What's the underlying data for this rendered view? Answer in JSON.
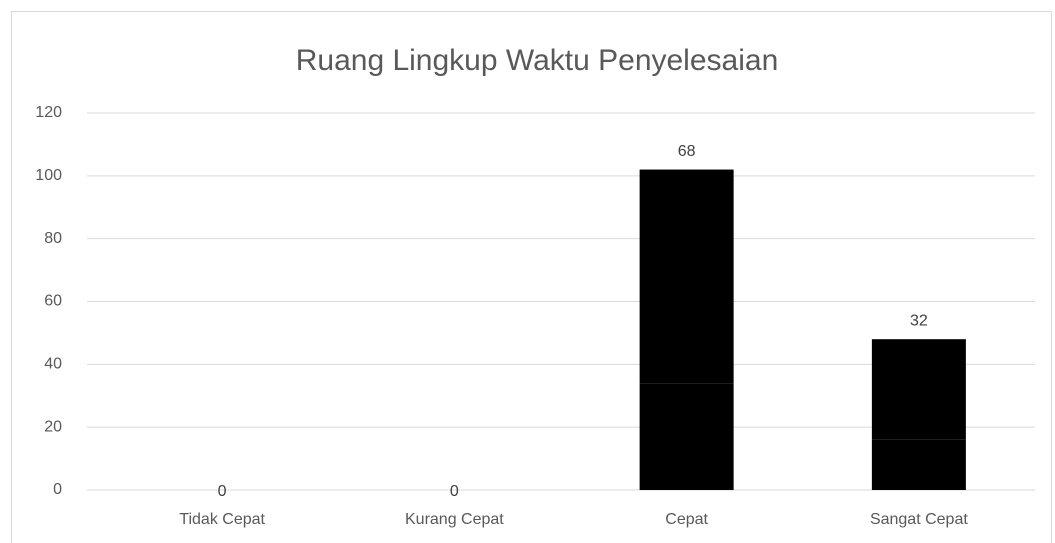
{
  "chart_data": {
    "type": "stacked_bar",
    "title": "Ruang Lingkup Waktu Penyelesaian",
    "categories": [
      "Tidak Cepat",
      "Kurang Cepat",
      "Cepat",
      "Sangat Cepat"
    ],
    "series": [
      {
        "color": "#000000",
        "values": [
          0,
          0,
          34,
          16
        ]
      },
      {
        "color": "#000000",
        "values": [
          0,
          0,
          68,
          32
        ],
        "data_labels": true
      }
    ],
    "ylim": [
      0,
      120
    ],
    "yticks": [
      0,
      20,
      40,
      60,
      80,
      100,
      120
    ],
    "grid": true
  }
}
